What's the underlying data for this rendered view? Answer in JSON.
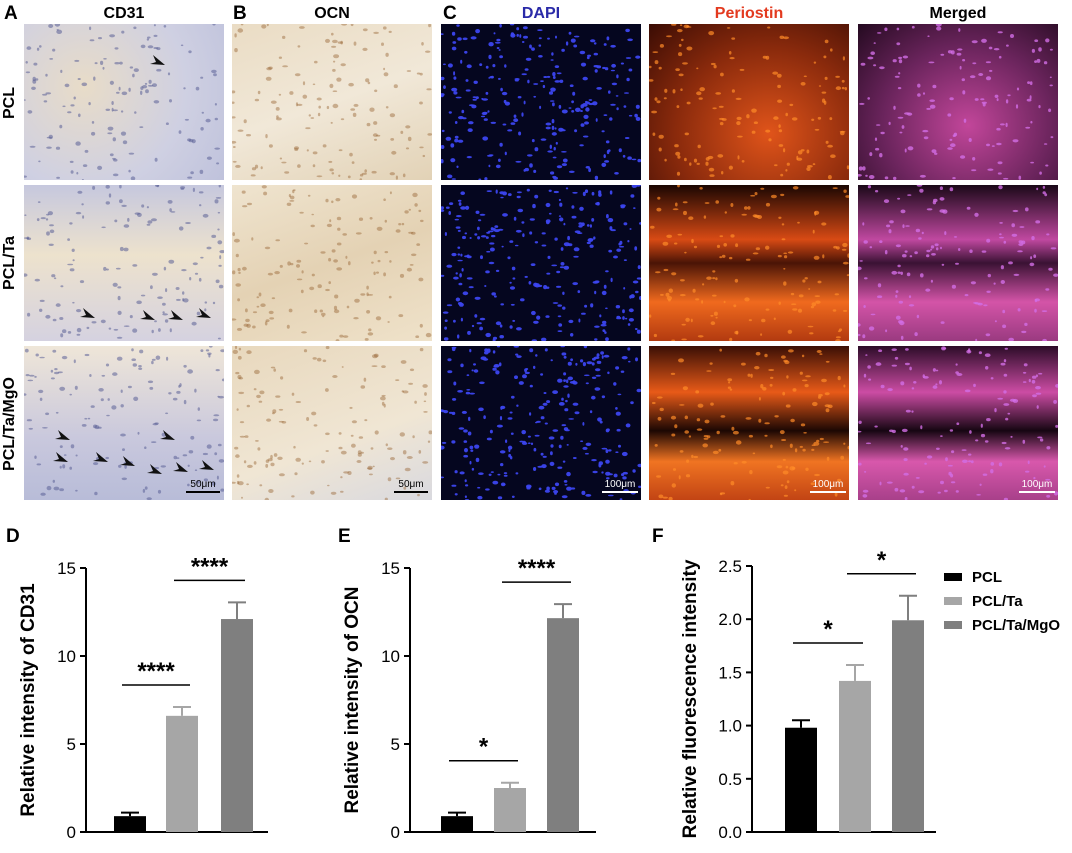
{
  "panels": {
    "A": "A",
    "B": "B",
    "C": "C",
    "D": "D",
    "E": "E",
    "F": "F"
  },
  "column_titles": {
    "cd31": "CD31",
    "ocn": "OCN",
    "dapi": "DAPI",
    "periostin": "Periostin",
    "merged": "Merged"
  },
  "row_labels": [
    "PCL",
    "PCL/Ta",
    "PCL/Ta/MgO"
  ],
  "scale_bars": {
    "micro": "50μm",
    "fluor": "100μm"
  },
  "colors": {
    "dapi_title": "#2a2aa8",
    "periostin_title": "#e33a1f",
    "pcl": "#000000",
    "pcl_ta": "#a6a6a6",
    "pcl_ta_mgo": "#7f7f7f"
  },
  "legend": [
    "PCL",
    "PCL/Ta",
    "PCL/Ta/MgO"
  ],
  "chart_data": [
    {
      "type": "bar",
      "panel": "D",
      "categories": [
        "PCL",
        "PCL/Ta",
        "PCL/Ta/MgO"
      ],
      "values": [
        0.9,
        6.6,
        12.1
      ],
      "errors": [
        0.2,
        0.5,
        0.95
      ],
      "ylabel": "Relative intensity of CD31",
      "ylim": [
        0,
        15
      ],
      "yticks": [
        0,
        5,
        10,
        15
      ],
      "significance": [
        {
          "from": 0,
          "to": 1,
          "label": "****"
        },
        {
          "from": 1,
          "to": 2,
          "label": "****"
        }
      ]
    },
    {
      "type": "bar",
      "panel": "E",
      "categories": [
        "PCL",
        "PCL/Ta",
        "PCL/Ta/MgO"
      ],
      "values": [
        0.9,
        2.5,
        12.15
      ],
      "errors": [
        0.2,
        0.3,
        0.8
      ],
      "ylabel": "Relative intensity of OCN",
      "ylim": [
        0,
        15
      ],
      "yticks": [
        0,
        5,
        10,
        15
      ],
      "significance": [
        {
          "from": 0,
          "to": 1,
          "label": "*"
        },
        {
          "from": 1,
          "to": 2,
          "label": "****"
        }
      ]
    },
    {
      "type": "bar",
      "panel": "F",
      "categories": [
        "PCL",
        "PCL/Ta",
        "PCL/Ta/MgO"
      ],
      "values": [
        0.98,
        1.42,
        1.99
      ],
      "errors": [
        0.07,
        0.15,
        0.23
      ],
      "ylabel": "Relative fluorescence intensity",
      "ylim": [
        0,
        2.5
      ],
      "yticks": [
        0.0,
        0.5,
        1.0,
        1.5,
        2.0,
        2.5
      ],
      "ytick_labels": [
        "0.0",
        "0.5",
        "1.0",
        "1.5",
        "2.0",
        "2.5"
      ],
      "significance": [
        {
          "from": 0,
          "to": 1,
          "label": "*"
        },
        {
          "from": 1,
          "to": 2,
          "label": "*"
        }
      ]
    }
  ]
}
